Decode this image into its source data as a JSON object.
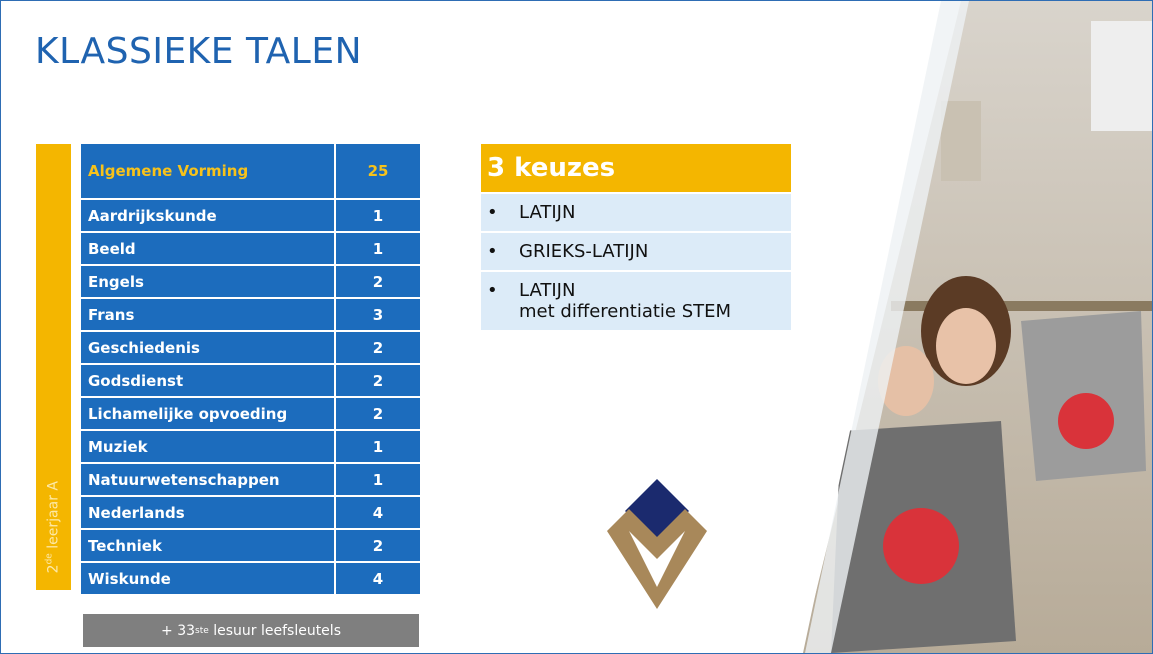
{
  "title": "KLASSIEKE TALEN",
  "side_label": {
    "number": "2",
    "suffix": "de",
    "text": " leerjaar A"
  },
  "table": {
    "header": [
      "Algemene Vorming",
      25
    ],
    "rows": [
      [
        "Aardrijkskunde",
        1
      ],
      [
        "Beeld",
        1
      ],
      [
        "Engels",
        2
      ],
      [
        "Frans",
        3
      ],
      [
        "Geschiedenis",
        2
      ],
      [
        "Godsdienst",
        2
      ],
      [
        "Lichamelijke opvoeding",
        2
      ],
      [
        "Muziek",
        1
      ],
      [
        "Natuurwetenschappen",
        1
      ],
      [
        "Nederlands",
        4
      ],
      [
        "Techniek",
        2
      ],
      [
        "Wiskunde",
        4
      ]
    ]
  },
  "footer": {
    "prefix": "+ 33",
    "suffix": "ste",
    "text": " lesuur leefsleutels"
  },
  "choices": {
    "title": "3 keuzes",
    "items": [
      [
        "LATIJN"
      ],
      [
        "GRIEKS-LATIJN"
      ],
      [
        "LATIJN",
        "met differentiatie STEM"
      ]
    ]
  }
}
